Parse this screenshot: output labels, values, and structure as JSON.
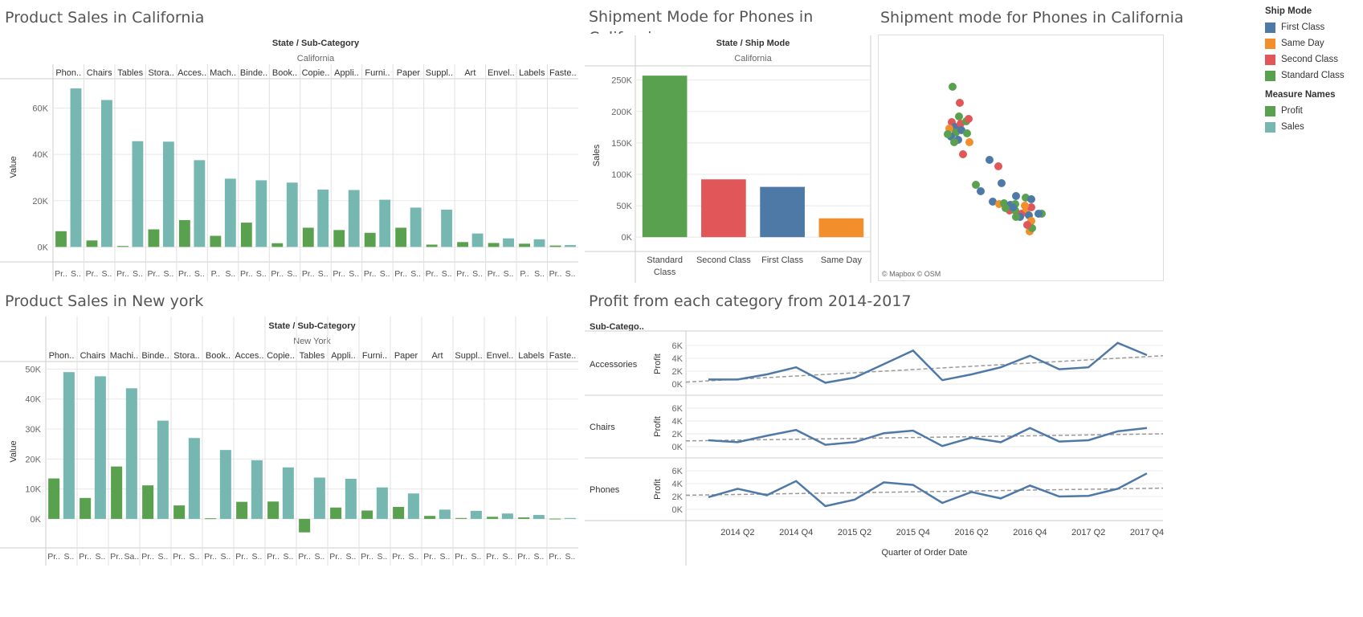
{
  "colors": {
    "profit": "#59a14f",
    "sales": "#76b7b2",
    "first_class": "#4e79a7",
    "same_day": "#f28e2b",
    "second_class": "#e15759",
    "standard_class": "#59a14f",
    "line": "#4e79a7",
    "trend": "#999999",
    "grid": "#e8e8e8",
    "axis_text": "#666666"
  },
  "legend": {
    "ship_mode_title": "Ship Mode",
    "ship_modes": [
      {
        "label": "First Class",
        "color": "#4e79a7"
      },
      {
        "label": "Same Day",
        "color": "#f28e2b"
      },
      {
        "label": "Second Class",
        "color": "#e15759"
      },
      {
        "label": "Standard Class",
        "color": "#59a14f"
      }
    ],
    "measure_title": "Measure Names",
    "measures": [
      {
        "label": "Profit",
        "color": "#59a14f"
      },
      {
        "label": "Sales",
        "color": "#76b7b2"
      }
    ]
  },
  "map": {
    "title": "Shipment mode for Phones  in California",
    "attribution": "© Mapbox  © OSM"
  },
  "chart_data": [
    {
      "id": "ca",
      "type": "bar",
      "title": "Product Sales in California",
      "header": "State / Sub-Category",
      "state": "California",
      "ylabel": "Value",
      "ylim": [
        -3000,
        72000
      ],
      "yticks": [
        0,
        20000,
        40000,
        60000
      ],
      "ytick_labels": [
        "0K",
        "20K",
        "40K",
        "60K"
      ],
      "categories": [
        "Phon..",
        "Chairs",
        "Tables",
        "Stora..",
        "Acces..",
        "Mach..",
        "Binde..",
        "Book..",
        "Copie..",
        "Appli..",
        "Furni..",
        "Paper",
        "Suppl..",
        "Art",
        "Envel..",
        "Labels",
        "Faste.."
      ],
      "bottom_labels": [
        [
          "Pr..",
          "S.."
        ],
        [
          "Pr..",
          "S.."
        ],
        [
          "Pr..",
          "S.."
        ],
        [
          "Pr..",
          "S.."
        ],
        [
          "Pr..",
          "S.."
        ],
        [
          "P..",
          "S.."
        ],
        [
          "Pr..",
          "S.."
        ],
        [
          "Pr..",
          "S.."
        ],
        [
          "Pr..",
          "S.."
        ],
        [
          "Pr..",
          "S.."
        ],
        [
          "Pr..",
          "S.."
        ],
        [
          "Pr..",
          "S.."
        ],
        [
          "Pr..",
          "S.."
        ],
        [
          "Pr..",
          "S.."
        ],
        [
          "Pr..",
          "S.."
        ],
        [
          "P..",
          "S.."
        ],
        [
          "Pr..",
          "S.."
        ]
      ],
      "series": [
        {
          "name": "Profit",
          "values": [
            6800,
            2800,
            400,
            7600,
            11600,
            4800,
            10500,
            1600,
            8300,
            7300,
            6100,
            8300,
            1000,
            2100,
            1700,
            1400,
            600
          ]
        },
        {
          "name": "Sales",
          "values": [
            68500,
            63500,
            45700,
            45500,
            37500,
            29500,
            28800,
            27800,
            24800,
            24600,
            20400,
            17000,
            16100,
            5800,
            3700,
            3300,
            800
          ]
        }
      ]
    },
    {
      "id": "ny",
      "type": "bar",
      "title": "Product Sales in New york",
      "header": "State / Sub-Category",
      "state": "New York",
      "ylabel": "Value",
      "ylim": [
        -7000,
        52000
      ],
      "yticks": [
        0,
        10000,
        20000,
        30000,
        40000,
        50000
      ],
      "ytick_labels": [
        "0K",
        "10K",
        "20K",
        "30K",
        "40K",
        "50K"
      ],
      "categories": [
        "Phon..",
        "Chairs",
        "Machi..",
        "Binde..",
        "Stora..",
        "Book..",
        "Acces..",
        "Copie..",
        "Tables",
        "Appli..",
        "Furni..",
        "Paper",
        "Art",
        "Suppl..",
        "Envel..",
        "Labels",
        "Faste.."
      ],
      "bottom_labels": [
        [
          "Pr..",
          "S.."
        ],
        [
          "Pr..",
          "S.."
        ],
        [
          "Pr..",
          "Sa.."
        ],
        [
          "Pr..",
          "S.."
        ],
        [
          "Pr..",
          "S.."
        ],
        [
          "Pr..",
          "S.."
        ],
        [
          "Pr..",
          "S.."
        ],
        [
          "Pr..",
          "S.."
        ],
        [
          "Pr..",
          "S.."
        ],
        [
          "Pr..",
          "S.."
        ],
        [
          "Pr..",
          "S.."
        ],
        [
          "Pr..",
          "S.."
        ],
        [
          "Pr..",
          "S.."
        ],
        [
          "Pr..",
          "S.."
        ],
        [
          "Pr..",
          "S.."
        ],
        [
          "Pr..",
          "S.."
        ],
        [
          "Pr..",
          "S.."
        ]
      ],
      "series": [
        {
          "name": "Profit",
          "values": [
            13500,
            7000,
            17500,
            11200,
            4500,
            200,
            5700,
            5800,
            -4500,
            3800,
            2800,
            4000,
            1000,
            300,
            700,
            500,
            100
          ]
        },
        {
          "name": "Sales",
          "values": [
            49000,
            47600,
            43600,
            32800,
            27000,
            23000,
            19600,
            17200,
            13800,
            13400,
            10500,
            8500,
            3100,
            2700,
            1800,
            1300,
            300
          ]
        }
      ]
    },
    {
      "id": "ship",
      "type": "bar",
      "title": "Shipment Mode for  Phones in California",
      "header": "State / Ship Mode",
      "state": "California",
      "ylabel": "Sales",
      "ylim": [
        -10000,
        270000
      ],
      "yticks": [
        0,
        50000,
        100000,
        150000,
        200000,
        250000
      ],
      "ytick_labels": [
        "0K",
        "50K",
        "100K",
        "150K",
        "200K",
        "250K"
      ],
      "categories": [
        "Standard Class",
        "Second Class",
        "First Class",
        "Same Day"
      ],
      "category_lines": [
        [
          "Standard",
          "Class"
        ],
        [
          "Second Class"
        ],
        [
          "First Class"
        ],
        [
          "Same Day"
        ]
      ],
      "values": [
        257000,
        92000,
        80000,
        30000
      ],
      "colors": [
        "#59a14f",
        "#e15759",
        "#4e79a7",
        "#f28e2b"
      ]
    },
    {
      "id": "profit",
      "type": "line",
      "title": "Profit from each category from 2014-2017",
      "row_header": "Sub-Catego..",
      "ylabel": "Profit",
      "xlabel": "Quarter of Order Date",
      "x": [
        "2014 Q1",
        "2014 Q2",
        "2014 Q3",
        "2014 Q4",
        "2015 Q1",
        "2015 Q2",
        "2015 Q3",
        "2015 Q4",
        "2016 Q1",
        "2016 Q2",
        "2016 Q3",
        "2016 Q4",
        "2017 Q1",
        "2017 Q2",
        "2017 Q3",
        "2017 Q4"
      ],
      "xtick_labels": [
        "2014 Q2",
        "2014 Q4",
        "2015 Q2",
        "2015 Q4",
        "2016 Q2",
        "2016 Q4",
        "2017 Q2",
        "2017 Q4"
      ],
      "xtick_indices": [
        1,
        3,
        5,
        7,
        9,
        11,
        13,
        15
      ],
      "ylim": [
        -1000,
        7000
      ],
      "yticks": [
        0,
        2000,
        4000,
        6000
      ],
      "ytick_labels": [
        "0K",
        "2K",
        "4K",
        "6K"
      ],
      "series": [
        {
          "name": "Accessories",
          "values": [
            700,
            700,
            1500,
            2600,
            200,
            1000,
            3100,
            5200,
            600,
            1500,
            2600,
            4400,
            2300,
            2600,
            6400,
            4500
          ],
          "trend": [
            300,
            4400
          ]
        },
        {
          "name": "Chairs",
          "values": [
            1000,
            700,
            1700,
            2600,
            300,
            700,
            2100,
            2500,
            100,
            1400,
            700,
            2900,
            800,
            1000,
            2400,
            2900
          ],
          "trend": [
            900,
            2000
          ]
        },
        {
          "name": "Phones",
          "values": [
            1900,
            3200,
            2200,
            4400,
            500,
            1500,
            4200,
            3800,
            1000,
            2700,
            1700,
            3700,
            2000,
            2100,
            3200,
            5600
          ],
          "trend": [
            2200,
            3300
          ]
        }
      ]
    }
  ]
}
